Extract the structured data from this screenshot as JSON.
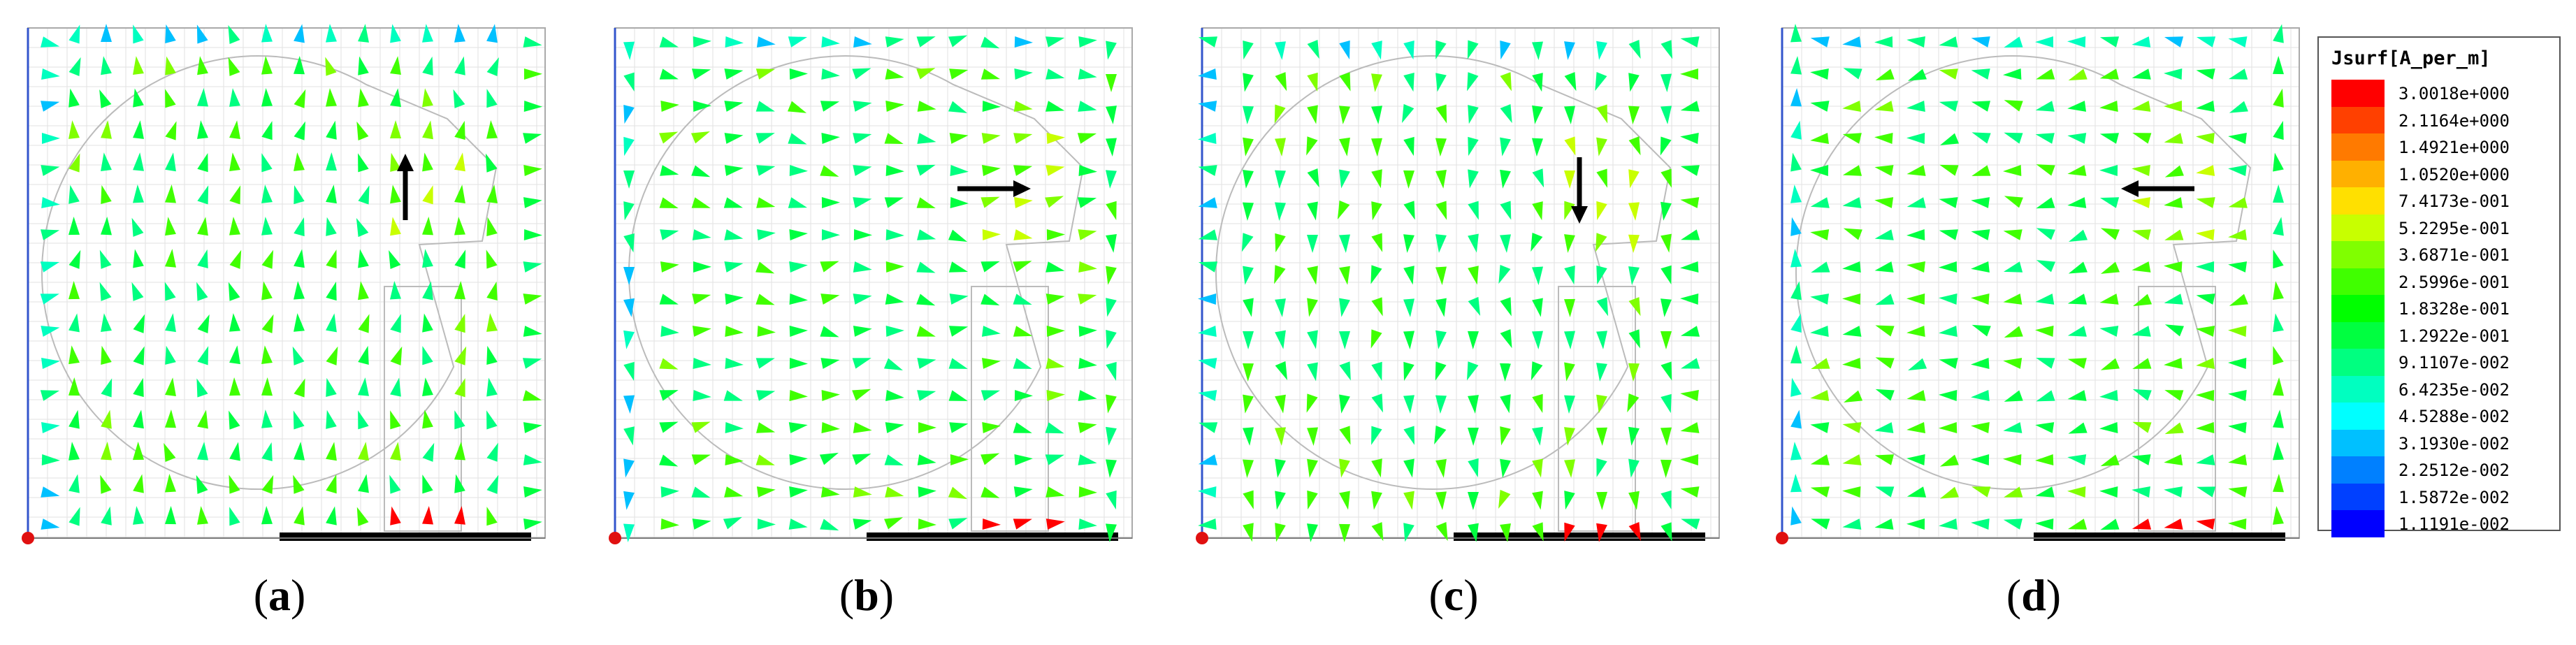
{
  "panels": [
    {
      "caption_letter": "a",
      "arrow_dir": "up"
    },
    {
      "caption_letter": "b",
      "arrow_dir": "right"
    },
    {
      "caption_letter": "c",
      "arrow_dir": "down"
    },
    {
      "caption_letter": "d",
      "arrow_dir": "left"
    }
  ],
  "legend": {
    "title": "Jsurf[A_per_m]",
    "entries": [
      {
        "value": "3.0018e+000",
        "color": "#ff0000"
      },
      {
        "value": "2.1164e+000",
        "color": "#ff4000"
      },
      {
        "value": "1.4921e+000",
        "color": "#ff7a00"
      },
      {
        "value": "1.0520e+000",
        "color": "#ffb000"
      },
      {
        "value": "7.4173e-001",
        "color": "#ffe000"
      },
      {
        "value": "5.2295e-001",
        "color": "#c8ff00"
      },
      {
        "value": "3.6871e-001",
        "color": "#80ff00"
      },
      {
        "value": "2.5996e-001",
        "color": "#40ff00"
      },
      {
        "value": "1.8328e-001",
        "color": "#00ff00"
      },
      {
        "value": "1.2922e-001",
        "color": "#00ff40"
      },
      {
        "value": "9.1107e-002",
        "color": "#00ff80"
      },
      {
        "value": "6.4235e-002",
        "color": "#00ffc0"
      },
      {
        "value": "4.5288e-002",
        "color": "#00ffff"
      },
      {
        "value": "3.1930e-002",
        "color": "#00c0ff"
      },
      {
        "value": "2.2512e-002",
        "color": "#0080ff"
      },
      {
        "value": "1.5872e-002",
        "color": "#0040ff"
      },
      {
        "value": "1.1191e-002",
        "color": "#0000ff"
      }
    ]
  }
}
